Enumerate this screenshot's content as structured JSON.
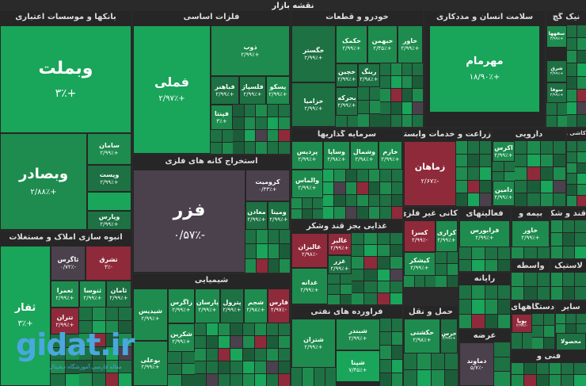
{
  "title": "نقشه بازار",
  "sectors": {
    "banks": "بانکها و موسسات اعتباری",
    "metals": "فلزات اساسی",
    "auto": "خودرو و قطعات",
    "human": "سلامت انسان و مددکاری",
    "dairy": "نیک گچ",
    "mining": "استخراج کانه های فلزی",
    "investment": "سرمایه گذاریها",
    "agri": "زراعت و خدمات وابسته",
    "pharma": "دارویی",
    "ceramic": "کاشی و",
    "realestate": "انبوه سازی املاک و مستغلات",
    "food": "غذایی بجز قند وشکر",
    "nonmetal": "کانی غیر فلزی",
    "activities": "فعالیتهای",
    "insurance": "بیمه و",
    "sugar": "قند و شکر",
    "chemical": "شیمیایی",
    "it": "رایانه",
    "plastic": "لاستیک",
    "intermediary": "واسطه",
    "oil": "فرآورده های نفتی",
    "transport": "حمل و نقل",
    "supply": "عرضه",
    "devices": "دستگاههای",
    "art": "فنی و",
    "other": "سایر"
  },
  "tiles": {
    "vbmellat": {
      "name": "وبملت",
      "pct": "+۳٪"
    },
    "vbsader": {
      "name": "وبصادر",
      "pct": "+۲/۸۸٪"
    },
    "saman": {
      "name": "سامان",
      "pct": "+۲/۹۹٪"
    },
    "vpost": {
      "name": "وپست",
      "pct": "+۲/۹۹٪"
    },
    "vpars": {
      "name": "وپارس",
      "pct": "+۲/۹۹٪"
    },
    "fameli": {
      "name": "فملی",
      "pct": "+۲/۹۷٪"
    },
    "zob": {
      "name": "ذوب",
      "pct": "+۲/۹۹٪"
    },
    "fabahonar": {
      "name": "فباهنر",
      "pct": "+۲/۹۹٪"
    },
    "feso": {
      "name": "فسرب",
      "pct": "+۲/۹۹٪"
    },
    "faspa": {
      "name": "پسکو",
      "pct": "+۲/۹۹٪"
    },
    "fapna": {
      "name": "فپنتا",
      "pct": "+۳٪"
    },
    "fasuli": {
      "name": "فلسپاژ",
      "pct": "+۲/۹۹٪"
    },
    "khagostar": {
      "name": "خگستر",
      "pct": "+۲/۹۹٪"
    },
    "khodro": {
      "name": "خکمک",
      "pct": "+۲/۹۹٪"
    },
    "khbahman": {
      "name": "خبهمن",
      "pct": "+۲/۴۵٪"
    },
    "khavar": {
      "name": "خاور",
      "pct": "+۲/۹۹٪"
    },
    "ring": {
      "name": "رینگ",
      "pct": "+۲/۹۸٪"
    },
    "khchin": {
      "name": "خچین",
      "pct": "+۲/۹۹٪"
    },
    "khazamia": {
      "name": "خزامیا",
      "pct": "+۲/۹۹٪"
    },
    "mharkh": {
      "name": "بحرکه",
      "pct": "+۲/۹۹٪"
    },
    "mehrmam": {
      "name": "مهرمام",
      "pct": "+۱۸/۹۰٪"
    },
    "sefaha": {
      "name": "سفهها",
      "pct": "+۲/۹۹٪"
    },
    "sharq": {
      "name": "شرق",
      "pct": "+۲/۹۹٪"
    },
    "sofal": {
      "name": "سوفا",
      "pct": "+۲/۹۹٪"
    },
    "fazar": {
      "name": "فزر",
      "pct": "-۰/۵۷٪"
    },
    "kromit": {
      "name": "کرومیت",
      "pct": "+۰/۳۳٪"
    },
    "kimia": {
      "name": "ومینا",
      "pct": "+۲/۹۹٪"
    },
    "madan": {
      "name": "معادن",
      "pct": "+۲/۹۹٪"
    },
    "pardis": {
      "name": "پردیس",
      "pct": "+۲/۹۹٪"
    },
    "vsapa": {
      "name": "وساپا",
      "pct": "+۲/۹۸٪"
    },
    "vshomal": {
      "name": "وشمال",
      "pct": "+۲/۹۸٪"
    },
    "khazam": {
      "name": "خازم",
      "pct": "+۲/۹۹٪"
    },
    "valmas": {
      "name": "والماس",
      "pct": "+۲/۹۹٪"
    },
    "zamahan": {
      "name": "زماهان",
      "pct": "-۲/۶۷٪"
    },
    "akrab": {
      "name": "اکرس",
      "pct": "+۲/۹۹٪"
    },
    "damin": {
      "name": "دامین",
      "pct": "+۲/۹۹٪"
    },
    "tashreq": {
      "name": "تشرق",
      "pct": "-۳٪"
    },
    "tgers": {
      "name": "ثاگرس",
      "pct": "-۰/۷۲٪"
    },
    "samanit": {
      "name": "ثامان",
      "pct": "+۲/۹۹٪"
    },
    "tentov": {
      "name": "ثنوسا",
      "pct": "+۲/۹۹٪"
    },
    "tamra": {
      "name": "ثعمرا",
      "pct": "+۲/۹۹٪"
    },
    "tehran": {
      "name": "تتران",
      "pct": "+۲/۹۹٪"
    },
    "saf": {
      "name": "ثفار",
      "pct": "+۳٪"
    },
    "ghalbor": {
      "name": "غالبر",
      "pct": "+۲/۹۹٪"
    },
    "ghazr": {
      "name": "غزر",
      "pct": "+۲/۹۹٪"
    },
    "ghadasah": {
      "name": "غدانه",
      "pct": "+۲/۹۹٪"
    },
    "ghalbaz": {
      "name": "غالیزان",
      "pct": "-۲/۹۸٪"
    },
    "kasra": {
      "name": "کسرا",
      "pct": "-۲/۹۹٪"
    },
    "karazi": {
      "name": "کرازی",
      "pct": "+۲/۹۹٪"
    },
    "kishkar": {
      "name": "کیشکر",
      "pct": "+۲/۹۹٪"
    },
    "farabors": {
      "name": "فرابورس",
      "pct": "+۲/۹۹٪"
    },
    "khavarmian": {
      "name": "خاور",
      "pct": "+۲/۹۹٪"
    },
    "shiydis": {
      "name": "شیدیس",
      "pct": "+۲/۹۹٪"
    },
    "zagros": {
      "name": "زاگرس",
      "pct": "+۲/۹۹٪"
    },
    "parsan": {
      "name": "پارسان",
      "pct": "+۲/۹۹٪"
    },
    "petrol": {
      "name": "پترول",
      "pct": "+۲/۹۹٪"
    },
    "shajam": {
      "name": "شجم",
      "pct": "+۲/۹۸٪"
    },
    "faras": {
      "name": "فارس",
      "pct": "-۲/۹۷٪"
    },
    "shakarin": {
      "name": "شکرین",
      "pct": "+۲/۹۹٪"
    },
    "boali": {
      "name": "بوعلی",
      "pct": "+۲/۹۹٪"
    },
    "shiran": {
      "name": "شتران",
      "pct": "+۲/۹۹٪"
    },
    "shabandar": {
      "name": "شبندر",
      "pct": "+۲/۹۹٪"
    },
    "shpna": {
      "name": "شپنا",
      "pct": "+۷/۴۵٪"
    },
    "hkashti": {
      "name": "حکشتی",
      "pct": "+۲/۹۸٪"
    },
    "haras": {
      "name": "حرس",
      "pct": "+۲/۹۹٪"
    },
    "damavand": {
      "name": "دماوند",
      "pct": "-۵/۷٪"
    },
    "poya": {
      "name": "پویا",
      "pct": "-۲/۹۹٪"
    },
    "mahsol": {
      "name": "محصولا",
      "pct": ""
    }
  },
  "watermark": {
    "brand": "gidat.ir",
    "caption": "مقاله فارسی آموزشگاه دیجیتال"
  }
}
